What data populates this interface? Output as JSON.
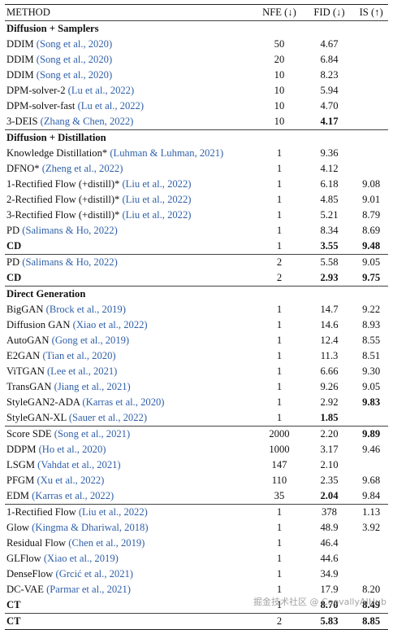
{
  "header": {
    "method": "METHOD",
    "nfe": "NFE (↓)",
    "fid": "FID (↓)",
    "is": "IS (↑)"
  },
  "groups": [
    {
      "title": "Diffusion + Samplers",
      "rows": [
        {
          "name": "DDIM",
          "cite": "(Song et al., 2020)",
          "nfe": "50",
          "fid": "4.67",
          "is": ""
        },
        {
          "name": "DDIM",
          "cite": "(Song et al., 2020)",
          "nfe": "20",
          "fid": "6.84",
          "is": ""
        },
        {
          "name": "DDIM",
          "cite": "(Song et al., 2020)",
          "nfe": "10",
          "fid": "8.23",
          "is": ""
        },
        {
          "name": "DPM-solver-2",
          "cite": "(Lu et al., 2022)",
          "nfe": "10",
          "fid": "5.94",
          "is": ""
        },
        {
          "name": "DPM-solver-fast",
          "cite": "(Lu et al., 2022)",
          "nfe": "10",
          "fid": "4.70",
          "is": ""
        },
        {
          "name": "3-DEIS",
          "cite": "(Zhang & Chen, 2022)",
          "nfe": "10",
          "fid": "4.17",
          "is": "",
          "fid_bold": true
        }
      ]
    },
    {
      "title": "Diffusion + Distillation",
      "rows": [
        {
          "name": "Knowledge Distillation*",
          "cite": "(Luhman & Luhman, 2021)",
          "nfe": "1",
          "fid": "9.36",
          "is": ""
        },
        {
          "name": "DFNO*",
          "cite": "(Zheng et al., 2022)",
          "nfe": "1",
          "fid": "4.12",
          "is": ""
        },
        {
          "name": "1-Rectified Flow (+distill)*",
          "cite": "(Liu et al., 2022)",
          "nfe": "1",
          "fid": "6.18",
          "is": "9.08"
        },
        {
          "name": "2-Rectified Flow (+distill)*",
          "cite": "(Liu et al., 2022)",
          "nfe": "1",
          "fid": "4.85",
          "is": "9.01"
        },
        {
          "name": "3-Rectified Flow (+distill)*",
          "cite": "(Liu et al., 2022)",
          "nfe": "1",
          "fid": "5.21",
          "is": "8.79"
        },
        {
          "name": "PD",
          "cite": "(Salimans & Ho, 2022)",
          "nfe": "1",
          "fid": "8.34",
          "is": "8.69"
        },
        {
          "name": "CD",
          "cite": "",
          "nfe": "1",
          "fid": "3.55",
          "is": "9.48",
          "name_bold": true,
          "fid_bold": true,
          "is_bold": true
        },
        {
          "name": "PD",
          "cite": "(Salimans & Ho, 2022)",
          "nfe": "2",
          "fid": "5.58",
          "is": "9.05",
          "rule": true
        },
        {
          "name": "CD",
          "cite": "",
          "nfe": "2",
          "fid": "2.93",
          "is": "9.75",
          "name_bold": true,
          "fid_bold": true,
          "is_bold": true
        }
      ]
    },
    {
      "title": "Direct Generation",
      "rows": [
        {
          "name": "BigGAN",
          "cite": "(Brock et al., 2019)",
          "nfe": "1",
          "fid": "14.7",
          "is": "9.22"
        },
        {
          "name": "Diffusion GAN",
          "cite": "(Xiao et al., 2022)",
          "nfe": "1",
          "fid": "14.6",
          "is": "8.93"
        },
        {
          "name": "AutoGAN",
          "cite": "(Gong et al., 2019)",
          "nfe": "1",
          "fid": "12.4",
          "is": "8.55"
        },
        {
          "name": "E2GAN",
          "cite": "(Tian et al., 2020)",
          "nfe": "1",
          "fid": "11.3",
          "is": "8.51"
        },
        {
          "name": "ViTGAN",
          "cite": "(Lee et al., 2021)",
          "nfe": "1",
          "fid": "6.66",
          "is": "9.30"
        },
        {
          "name": "TransGAN",
          "cite": "(Jiang et al., 2021)",
          "nfe": "1",
          "fid": "9.26",
          "is": "9.05"
        },
        {
          "name": "StyleGAN2-ADA",
          "cite": "(Karras et al., 2020)",
          "nfe": "1",
          "fid": "2.92",
          "is": "9.83",
          "is_bold": true
        },
        {
          "name": "StyleGAN-XL",
          "cite": "(Sauer et al., 2022)",
          "nfe": "1",
          "fid": "1.85",
          "is": "",
          "fid_bold": true
        },
        {
          "name": "Score SDE",
          "cite": "(Song et al., 2021)",
          "nfe": "2000",
          "fid": "2.20",
          "is": "9.89",
          "is_bold": true,
          "rule": true
        },
        {
          "name": "DDPM",
          "cite": "(Ho et al., 2020)",
          "nfe": "1000",
          "fid": "3.17",
          "is": "9.46"
        },
        {
          "name": "LSGM",
          "cite": "(Vahdat et al., 2021)",
          "nfe": "147",
          "fid": "2.10",
          "is": ""
        },
        {
          "name": "PFGM",
          "cite": "(Xu et al., 2022)",
          "nfe": "110",
          "fid": "2.35",
          "is": "9.68"
        },
        {
          "name": "EDM",
          "cite": "(Karras et al., 2022)",
          "nfe": "35",
          "fid": "2.04",
          "is": "9.84",
          "fid_bold": true
        },
        {
          "name": "1-Rectified Flow",
          "cite": "(Liu et al., 2022)",
          "nfe": "1",
          "fid": "378",
          "is": "1.13",
          "rule": true
        },
        {
          "name": "Glow",
          "cite": "(Kingma & Dhariwal, 2018)",
          "nfe": "1",
          "fid": "48.9",
          "is": "3.92"
        },
        {
          "name": "Residual Flow",
          "cite": "(Chen et al., 2019)",
          "nfe": "1",
          "fid": "46.4",
          "is": ""
        },
        {
          "name": "GLFlow",
          "cite": "(Xiao et al., 2019)",
          "nfe": "1",
          "fid": "44.6",
          "is": ""
        },
        {
          "name": "DenseFlow",
          "cite": "(Grcić et al., 2021)",
          "nfe": "1",
          "fid": "34.9",
          "is": ""
        },
        {
          "name": "DC-VAE",
          "cite": "(Parmar et al., 2021)",
          "nfe": "1",
          "fid": "17.9",
          "is": "8.20"
        },
        {
          "name": "CT",
          "cite": "",
          "nfe": "1",
          "fid": "8.70",
          "is": "8.49",
          "name_bold": true,
          "fid_bold": true,
          "is_bold": true
        },
        {
          "name": "CT",
          "cite": "",
          "nfe": "2",
          "fid": "5.83",
          "is": "8.85",
          "name_bold": true,
          "fid_bold": true,
          "is_bold": true,
          "rule": true
        }
      ]
    }
  ],
  "watermark": "掘金技术社区 @ CoovallyAIHub"
}
